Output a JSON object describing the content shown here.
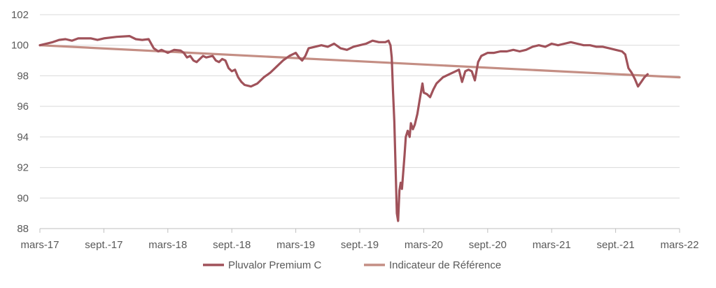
{
  "chart_data": {
    "type": "line",
    "title": "",
    "xlabel": "",
    "ylabel": "",
    "ylim": [
      88,
      102
    ],
    "yticks": [
      88,
      90,
      92,
      94,
      96,
      98,
      100,
      102
    ],
    "xticks": [
      "mars-17",
      "sept.-17",
      "mars-18",
      "sept.-18",
      "mars-19",
      "sept.-19",
      "mars-20",
      "sept.-20",
      "mars-21",
      "sept.-21",
      "mars-22"
    ],
    "grid": "horizontal",
    "legend_position": "bottom-center",
    "series": [
      {
        "name": "Pluvalor Premium C",
        "color": "#A0525A",
        "points": [
          [
            0.0,
            100.0
          ],
          [
            0.1,
            100.1
          ],
          [
            0.2,
            100.2
          ],
          [
            0.3,
            100.35
          ],
          [
            0.4,
            100.4
          ],
          [
            0.5,
            100.3
          ],
          [
            0.6,
            100.45
          ],
          [
            0.8,
            100.45
          ],
          [
            0.9,
            100.35
          ],
          [
            1.0,
            100.45
          ],
          [
            1.2,
            100.55
          ],
          [
            1.4,
            100.6
          ],
          [
            1.5,
            100.4
          ],
          [
            1.6,
            100.35
          ],
          [
            1.7,
            100.4
          ],
          [
            1.74,
            100.1
          ],
          [
            1.78,
            99.8
          ],
          [
            1.85,
            99.6
          ],
          [
            1.9,
            99.7
          ],
          [
            2.0,
            99.5
          ],
          [
            2.1,
            99.7
          ],
          [
            2.2,
            99.65
          ],
          [
            2.25,
            99.5
          ],
          [
            2.3,
            99.2
          ],
          [
            2.35,
            99.3
          ],
          [
            2.4,
            99.0
          ],
          [
            2.45,
            98.9
          ],
          [
            2.5,
            99.1
          ],
          [
            2.55,
            99.3
          ],
          [
            2.6,
            99.2
          ],
          [
            2.7,
            99.3
          ],
          [
            2.75,
            99.0
          ],
          [
            2.8,
            98.9
          ],
          [
            2.85,
            99.1
          ],
          [
            2.9,
            99.0
          ],
          [
            2.95,
            98.5
          ],
          [
            3.0,
            98.3
          ],
          [
            3.05,
            98.4
          ],
          [
            3.1,
            97.9
          ],
          [
            3.15,
            97.6
          ],
          [
            3.2,
            97.4
          ],
          [
            3.3,
            97.3
          ],
          [
            3.4,
            97.5
          ],
          [
            3.5,
            97.9
          ],
          [
            3.6,
            98.2
          ],
          [
            3.7,
            98.6
          ],
          [
            3.8,
            99.0
          ],
          [
            3.9,
            99.3
          ],
          [
            4.0,
            99.5
          ],
          [
            4.05,
            99.2
          ],
          [
            4.1,
            99.0
          ],
          [
            4.15,
            99.3
          ],
          [
            4.2,
            99.8
          ],
          [
            4.3,
            99.9
          ],
          [
            4.4,
            100.0
          ],
          [
            4.5,
            99.9
          ],
          [
            4.6,
            100.1
          ],
          [
            4.7,
            99.8
          ],
          [
            4.8,
            99.7
          ],
          [
            4.9,
            99.9
          ],
          [
            5.0,
            100.0
          ],
          [
            5.1,
            100.1
          ],
          [
            5.2,
            100.3
          ],
          [
            5.3,
            100.2
          ],
          [
            5.4,
            100.2
          ],
          [
            5.45,
            100.3
          ],
          [
            5.48,
            100.0
          ],
          [
            5.5,
            99.2
          ],
          [
            5.52,
            97.0
          ],
          [
            5.54,
            95.0
          ],
          [
            5.56,
            92.0
          ],
          [
            5.58,
            89.0
          ],
          [
            5.6,
            88.5
          ],
          [
            5.62,
            90.5
          ],
          [
            5.64,
            91.0
          ],
          [
            5.66,
            90.6
          ],
          [
            5.7,
            92.8
          ],
          [
            5.72,
            94.0
          ],
          [
            5.75,
            94.4
          ],
          [
            5.78,
            94.0
          ],
          [
            5.8,
            94.9
          ],
          [
            5.83,
            94.5
          ],
          [
            5.86,
            94.8
          ],
          [
            5.9,
            95.5
          ],
          [
            5.94,
            96.5
          ],
          [
            5.98,
            97.5
          ],
          [
            6.0,
            96.9
          ],
          [
            6.05,
            96.8
          ],
          [
            6.1,
            96.6
          ],
          [
            6.15,
            97.1
          ],
          [
            6.2,
            97.5
          ],
          [
            6.3,
            97.9
          ],
          [
            6.4,
            98.1
          ],
          [
            6.5,
            98.3
          ],
          [
            6.55,
            98.4
          ],
          [
            6.6,
            97.6
          ],
          [
            6.65,
            98.3
          ],
          [
            6.7,
            98.4
          ],
          [
            6.75,
            98.3
          ],
          [
            6.8,
            97.7
          ],
          [
            6.85,
            98.9
          ],
          [
            6.9,
            99.3
          ],
          [
            7.0,
            99.5
          ],
          [
            7.1,
            99.5
          ],
          [
            7.2,
            99.6
          ],
          [
            7.3,
            99.6
          ],
          [
            7.4,
            99.7
          ],
          [
            7.5,
            99.6
          ],
          [
            7.6,
            99.7
          ],
          [
            7.7,
            99.9
          ],
          [
            7.8,
            100.0
          ],
          [
            7.9,
            99.9
          ],
          [
            8.0,
            100.1
          ],
          [
            8.1,
            100.0
          ],
          [
            8.2,
            100.1
          ],
          [
            8.3,
            100.2
          ],
          [
            8.4,
            100.1
          ],
          [
            8.5,
            100.0
          ],
          [
            8.6,
            100.0
          ],
          [
            8.7,
            99.9
          ],
          [
            8.8,
            99.9
          ],
          [
            8.9,
            99.8
          ],
          [
            9.0,
            99.7
          ],
          [
            9.1,
            99.6
          ],
          [
            9.15,
            99.4
          ],
          [
            9.2,
            98.5
          ],
          [
            9.25,
            98.2
          ],
          [
            9.3,
            97.8
          ],
          [
            9.35,
            97.3
          ],
          [
            9.4,
            97.6
          ],
          [
            9.45,
            97.9
          ],
          [
            9.5,
            98.1
          ]
        ]
      },
      {
        "name": "Indicateur de Référence",
        "color": "#C48E84",
        "points": [
          [
            0.0,
            100.0
          ],
          [
            5.0,
            98.95
          ],
          [
            10.0,
            97.9
          ]
        ]
      }
    ]
  }
}
